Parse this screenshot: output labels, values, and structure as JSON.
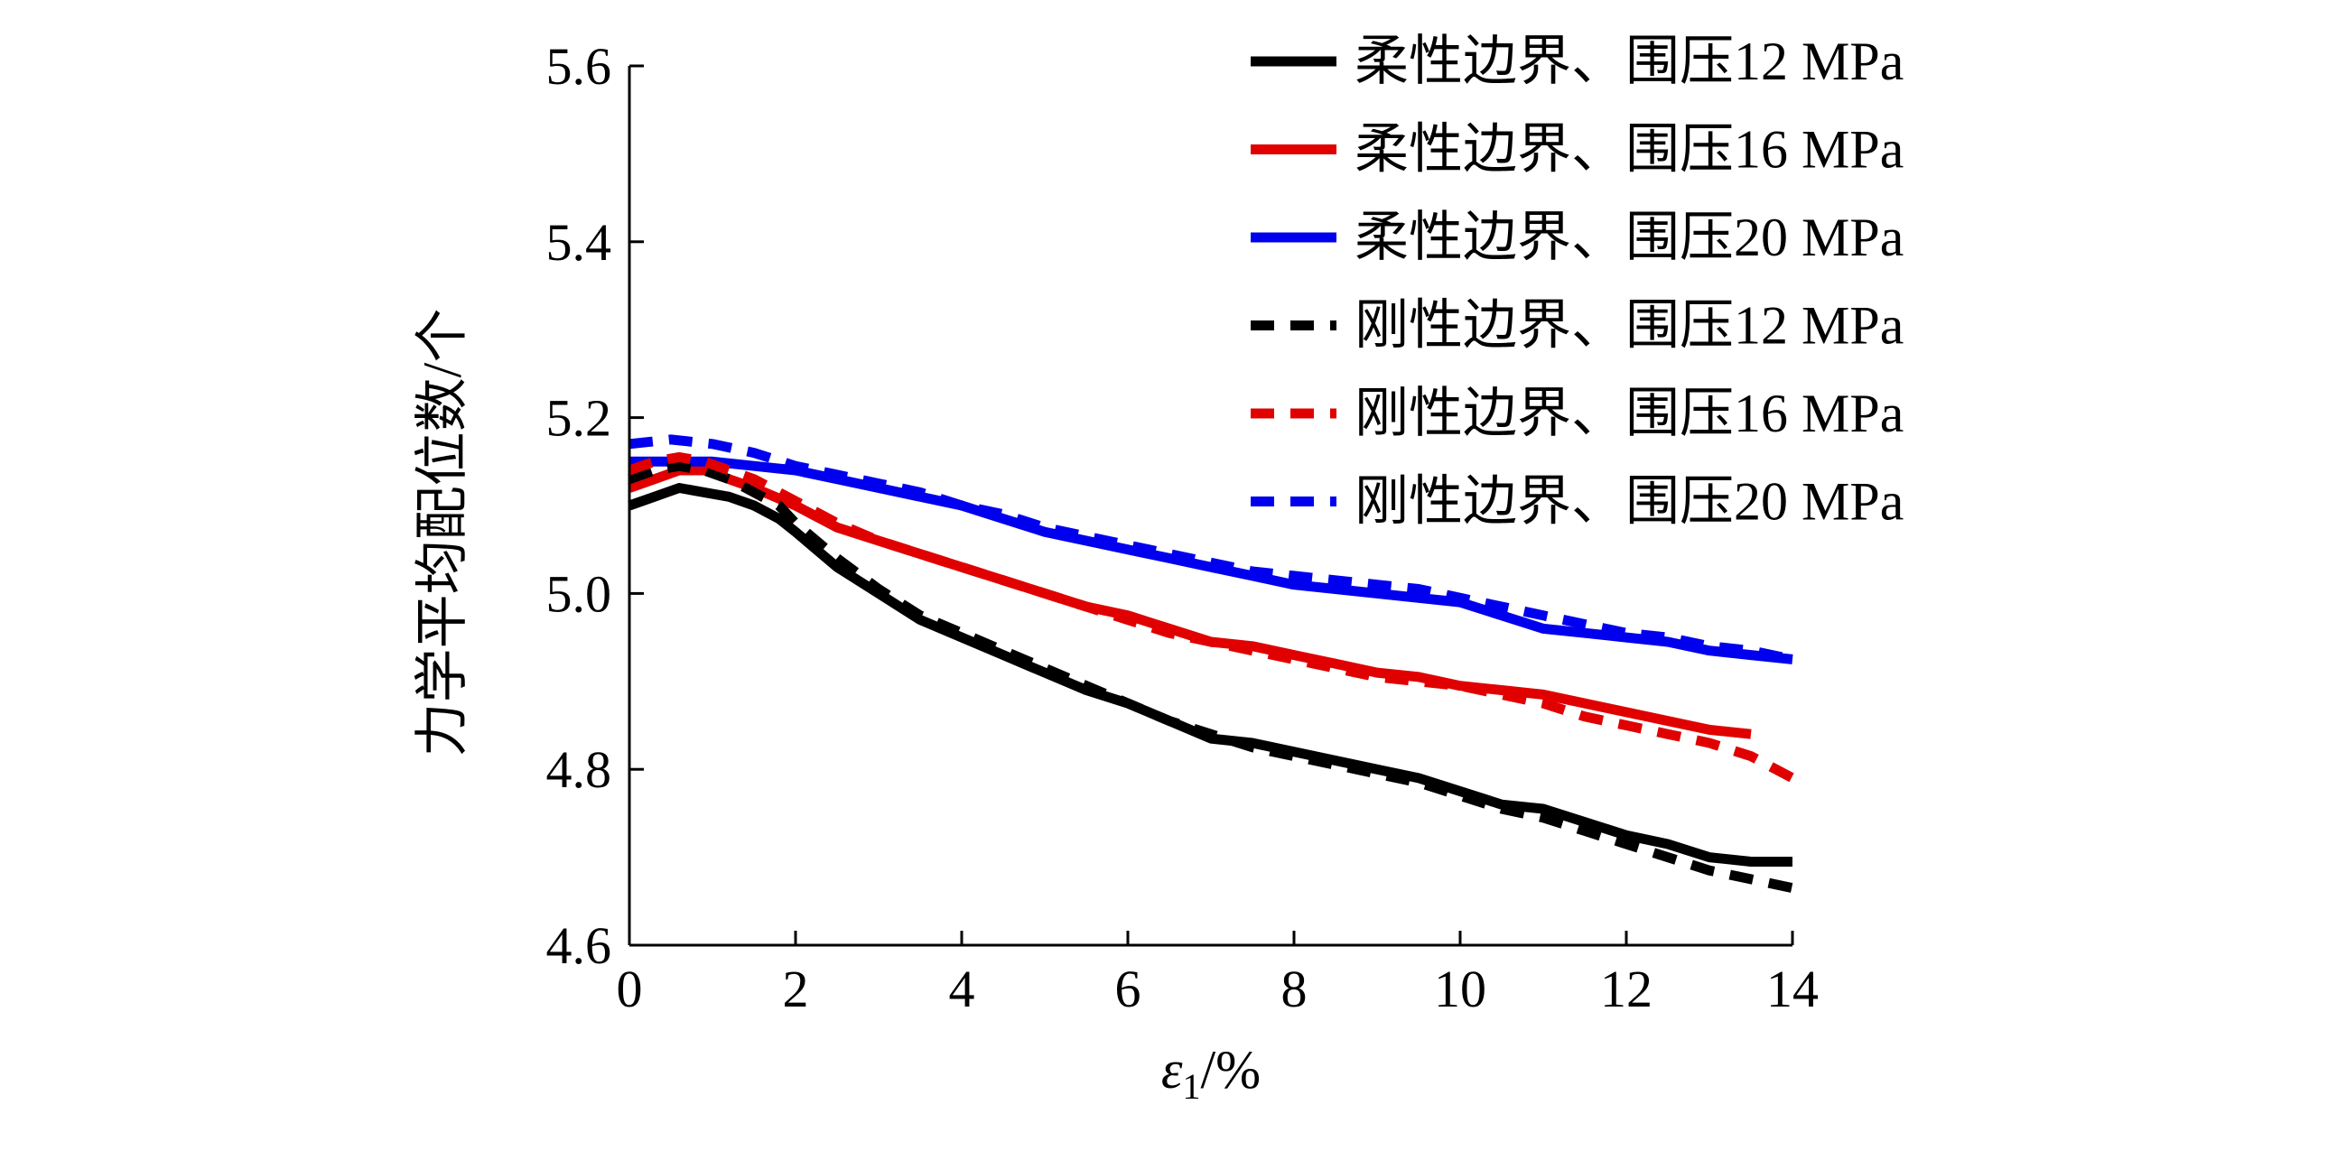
{
  "chart_data": {
    "type": "line",
    "title": "",
    "xlabel": "ε1/%",
    "xlabel_main": "ε",
    "xlabel_sub": "1",
    "xlabel_unit": "/%",
    "ylabel": "力学平均配位数/个",
    "xlim": [
      0,
      14
    ],
    "ylim": [
      4.6,
      5.6
    ],
    "xticks": [
      0,
      2,
      4,
      6,
      8,
      10,
      12,
      14
    ],
    "yticks": [
      4.6,
      4.8,
      5.0,
      5.2,
      5.4,
      5.6
    ],
    "xtick_labels": [
      "0",
      "2",
      "4",
      "6",
      "8",
      "10",
      "12",
      "14"
    ],
    "ytick_labels": [
      "4.6",
      "4.8",
      "5.0",
      "5.2",
      "5.4",
      "5.6"
    ],
    "grid": false,
    "legend_position": "top-right",
    "series": [
      {
        "name": "柔性边界、围压12 MPa",
        "color": "#000000",
        "style": "solid",
        "x": [
          0,
          0.3,
          0.6,
          0.9,
          1.2,
          1.5,
          1.8,
          2.0,
          2.5,
          3.0,
          3.5,
          4.0,
          4.5,
          5.0,
          5.5,
          6.0,
          6.5,
          7.0,
          7.5,
          8.0,
          8.5,
          9.0,
          9.5,
          10.0,
          10.5,
          11.0,
          11.5,
          12.0,
          12.5,
          13.0,
          13.5,
          14.0
        ],
        "values": [
          5.1,
          5.11,
          5.12,
          5.115,
          5.11,
          5.1,
          5.085,
          5.07,
          5.03,
          5.0,
          4.97,
          4.95,
          4.93,
          4.91,
          4.89,
          4.875,
          4.855,
          4.835,
          4.83,
          4.82,
          4.81,
          4.8,
          4.79,
          4.775,
          4.76,
          4.755,
          4.74,
          4.725,
          4.715,
          4.7,
          4.695,
          4.695
        ]
      },
      {
        "name": "柔性边界、围压16 MPa",
        "color": "#e00000",
        "style": "solid",
        "x": [
          0,
          0.3,
          0.6,
          0.9,
          1.2,
          1.5,
          2.0,
          2.5,
          3.0,
          3.5,
          4.0,
          4.5,
          5.0,
          5.5,
          6.0,
          6.5,
          7.0,
          7.5,
          8.0,
          8.5,
          9.0,
          9.5,
          10.0,
          10.5,
          11.0,
          11.5,
          12.0,
          12.5,
          13.0,
          13.5
        ],
        "values": [
          5.12,
          5.13,
          5.14,
          5.14,
          5.13,
          5.12,
          5.1,
          5.075,
          5.06,
          5.045,
          5.03,
          5.015,
          5.0,
          4.985,
          4.975,
          4.96,
          4.945,
          4.94,
          4.93,
          4.92,
          4.91,
          4.905,
          4.895,
          4.89,
          4.885,
          4.875,
          4.865,
          4.855,
          4.845,
          4.84
        ]
      },
      {
        "name": "柔性边界、围压20 MPa",
        "color": "#0000ee",
        "style": "solid",
        "x": [
          0,
          0.5,
          1.0,
          1.5,
          2.0,
          2.5,
          3.0,
          3.5,
          4.0,
          4.5,
          5.0,
          5.5,
          6.0,
          6.5,
          7.0,
          7.5,
          8.0,
          8.5,
          9.0,
          9.5,
          10.0,
          10.5,
          11.0,
          11.5,
          12.0,
          12.5,
          13.0,
          13.5,
          14.0
        ],
        "values": [
          5.15,
          5.15,
          5.15,
          5.145,
          5.14,
          5.13,
          5.12,
          5.11,
          5.1,
          5.085,
          5.07,
          5.06,
          5.05,
          5.04,
          5.03,
          5.02,
          5.01,
          5.005,
          5.0,
          4.995,
          4.99,
          4.975,
          4.96,
          4.955,
          4.95,
          4.945,
          4.935,
          4.93,
          4.925
        ]
      },
      {
        "name": "刚性边界、围压12 MPa",
        "color": "#000000",
        "style": "dashed",
        "x": [
          0,
          0.3,
          0.6,
          0.9,
          1.2,
          1.5,
          1.8,
          2.0,
          2.5,
          3.0,
          3.5,
          4.0,
          4.5,
          5.0,
          5.5,
          6.0,
          6.5,
          7.0,
          7.5,
          8.0,
          8.5,
          9.0,
          9.5,
          10.0,
          10.5,
          11.0,
          11.5,
          12.0,
          12.5,
          13.0,
          13.5,
          14.0
        ],
        "values": [
          5.13,
          5.14,
          5.145,
          5.14,
          5.13,
          5.115,
          5.1,
          5.08,
          5.04,
          5.005,
          4.975,
          4.955,
          4.935,
          4.915,
          4.895,
          4.875,
          4.855,
          4.84,
          4.825,
          4.815,
          4.805,
          4.795,
          4.785,
          4.77,
          4.755,
          4.745,
          4.73,
          4.715,
          4.7,
          4.685,
          4.675,
          4.665
        ]
      },
      {
        "name": "刚性边界、围压16 MPa",
        "color": "#e00000",
        "style": "dashed",
        "x": [
          0,
          0.3,
          0.6,
          0.9,
          1.2,
          1.5,
          2.0,
          2.5,
          3.0,
          3.5,
          4.0,
          4.5,
          5.0,
          5.5,
          6.0,
          6.5,
          7.0,
          7.5,
          8.0,
          8.5,
          9.0,
          9.5,
          10.0,
          10.5,
          11.0,
          11.5,
          12.0,
          12.5,
          13.0,
          13.5,
          14.0
        ],
        "values": [
          5.14,
          5.15,
          5.155,
          5.15,
          5.14,
          5.13,
          5.105,
          5.08,
          5.06,
          5.045,
          5.03,
          5.015,
          5.0,
          4.985,
          4.97,
          4.955,
          4.945,
          4.935,
          4.925,
          4.915,
          4.905,
          4.9,
          4.895,
          4.885,
          4.875,
          4.86,
          4.85,
          4.84,
          4.83,
          4.815,
          4.79
        ]
      },
      {
        "name": "刚性边界、围压20 MPa",
        "color": "#0000ee",
        "style": "dashed",
        "x": [
          0,
          0.5,
          1.0,
          1.5,
          2.0,
          2.5,
          3.0,
          3.5,
          4.0,
          4.5,
          5.0,
          5.5,
          6.0,
          6.5,
          7.0,
          7.5,
          8.0,
          8.5,
          9.0,
          9.5,
          10.0,
          10.5,
          11.0,
          11.5,
          12.0,
          12.5,
          13.0,
          13.5,
          14.0
        ],
        "values": [
          5.17,
          5.175,
          5.17,
          5.16,
          5.145,
          5.135,
          5.125,
          5.115,
          5.1,
          5.09,
          5.075,
          5.065,
          5.055,
          5.045,
          5.035,
          5.025,
          5.02,
          5.015,
          5.01,
          5.005,
          4.995,
          4.985,
          4.975,
          4.965,
          4.955,
          4.95,
          4.94,
          4.935,
          4.925
        ]
      }
    ]
  }
}
